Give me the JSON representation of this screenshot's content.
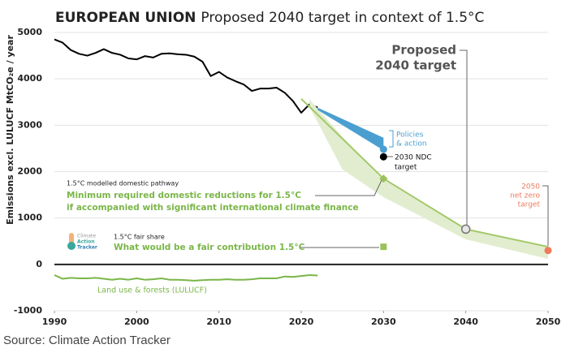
{
  "chart_data": {
    "type": "line",
    "title": "EUROPEAN UNION",
    "subtitle": "Proposed 2040 target in context of 1.5°C",
    "y_label": "Emissions excl. LULUCF MtCO₂e / year",
    "source": "Source: Climate Action Tracker",
    "xlim": [
      1990,
      2050
    ],
    "ylim": [
      -1000,
      5000
    ],
    "xticks": [
      1990,
      2000,
      2010,
      2020,
      2030,
      2040,
      2050
    ],
    "yticks": [
      -1000,
      0,
      1000,
      2000,
      3000,
      4000,
      5000
    ],
    "grid": true,
    "series": [
      {
        "type": "line",
        "color": "#000000",
        "x": [
          1990,
          1991,
          1992,
          1993,
          1994,
          1995,
          1996,
          1997,
          1998,
          1999,
          2000,
          2001,
          2002,
          2003,
          2004,
          2005,
          2006,
          2007,
          2008,
          2009,
          2010,
          2011,
          2012,
          2013,
          2014,
          2015,
          2016,
          2017,
          2018,
          2019,
          2020,
          2021,
          2022
        ],
        "values": [
          4850,
          4780,
          4620,
          4540,
          4500,
          4560,
          4640,
          4560,
          4520,
          4440,
          4420,
          4490,
          4460,
          4540,
          4550,
          4530,
          4520,
          4480,
          4370,
          4060,
          4150,
          4030,
          3950,
          3880,
          3740,
          3790,
          3790,
          3810,
          3700,
          3520,
          3270,
          3450,
          3380
        ]
      },
      {
        "type": "line",
        "name": "Land use & forests (LULUCF)",
        "color": "#7ab648",
        "x": [
          1990,
          1991,
          1992,
          1993,
          1994,
          1995,
          1996,
          1997,
          1998,
          1999,
          2000,
          2001,
          2002,
          2003,
          2004,
          2005,
          2006,
          2007,
          2008,
          2009,
          2010,
          2011,
          2012,
          2013,
          2014,
          2015,
          2016,
          2017,
          2018,
          2019,
          2020,
          2021,
          2022
        ],
        "values": [
          -230,
          -310,
          -290,
          -300,
          -300,
          -290,
          -310,
          -330,
          -310,
          -330,
          -300,
          -330,
          -320,
          -300,
          -330,
          -330,
          -340,
          -350,
          -340,
          -330,
          -330,
          -320,
          -330,
          -330,
          -320,
          -300,
          -300,
          -300,
          -260,
          -270,
          -250,
          -230,
          -240
        ]
      },
      {
        "type": "area",
        "label": [
          "Policies",
          "& action"
        ],
        "color": "#4a9fd0",
        "x": [
          2022,
          2030
        ],
        "upper": [
          3380,
          2730
        ],
        "lower": [
          3330,
          2460
        ]
      },
      {
        "type": "area",
        "color": "#e2edcf",
        "x": [
          2021,
          2025,
          2030,
          2040,
          2050
        ],
        "upper": [
          3560,
          2750,
          1850,
          760,
          380
        ],
        "lower": [
          3400,
          2050,
          1450,
          540,
          120
        ]
      },
      {
        "type": "line",
        "color": "#a3c96a",
        "x": [
          2020,
          2030,
          2040,
          2050
        ],
        "values": [
          3570,
          1850,
          760,
          380
        ]
      }
    ],
    "markers": [
      {
        "shape": "circle",
        "x": 2040,
        "value": 760,
        "color": "#777777",
        "label": [
          "Proposed",
          "2040 target"
        ]
      },
      {
        "shape": "dot",
        "x": 2030,
        "value": 2480,
        "color": "#4a9fd0"
      },
      {
        "shape": "dot",
        "x": 2030,
        "value": 2320,
        "color": "#000000",
        "label": [
          "2030 NDC",
          "target"
        ]
      },
      {
        "shape": "diamond",
        "x": 2030,
        "value": 1850,
        "color": "#9bc25a",
        "caption": "1.5°C modelled domestic pathway",
        "label": [
          "Minimum required domestic reductions for 1.5°C",
          "if accompanied with significant international climate finance"
        ]
      },
      {
        "shape": "square",
        "x": 2030,
        "value": 380,
        "color": "#9bc25a",
        "caption": "1.5°C fair share",
        "label": [
          "What would be a fair contribution 1.5°C"
        ]
      },
      {
        "shape": "dot",
        "x": 2050,
        "value": 300,
        "color": "#f07a5a",
        "label": [
          "2050",
          "net zero",
          "target"
        ]
      }
    ]
  },
  "logo": [
    "Climate",
    "Action",
    "Tracker"
  ]
}
